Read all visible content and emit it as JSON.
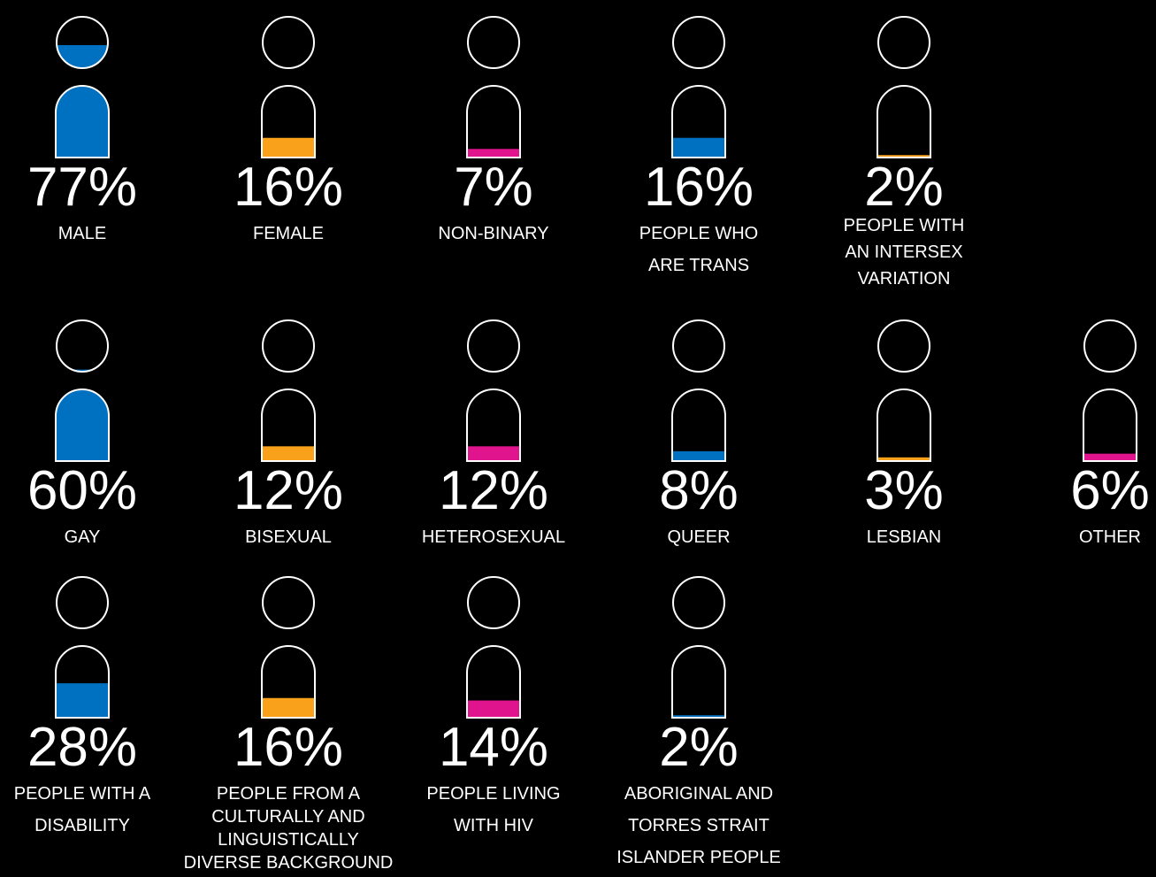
{
  "colors": {
    "background": "#000000",
    "blue": "#0070C0",
    "orange": "#F9A11B",
    "magenta": "#E0148C",
    "outline": "#FFFFFF",
    "text": "#FFFFFF"
  },
  "chart_data": {
    "type": "pictograph",
    "icon": "person-icon",
    "rows": [
      {
        "items": [
          {
            "value": 77,
            "display": "77%",
            "label_lines": [
              "MALE"
            ],
            "color": "#0070C0"
          },
          {
            "value": 16,
            "display": "16%",
            "label_lines": [
              "FEMALE"
            ],
            "color": "#F9A11B"
          },
          {
            "value": 7,
            "display": "7%",
            "label_lines": [
              "NON-BINARY"
            ],
            "color": "#E0148C"
          },
          {
            "value": 16,
            "display": "16%",
            "label_lines": [
              "PEOPLE WHO",
              "ARE TRANS"
            ],
            "color": "#0070C0"
          },
          {
            "value": 2,
            "display": "2%",
            "label_lines": [
              "PEOPLE WITH",
              "AN INTERSEX",
              "VARIATION"
            ],
            "color": "#F9A11B"
          }
        ]
      },
      {
        "items": [
          {
            "value": 60,
            "display": "60%",
            "label_lines": [
              "GAY"
            ],
            "color": "#0070C0"
          },
          {
            "value": 12,
            "display": "12%",
            "label_lines": [
              "BISEXUAL"
            ],
            "color": "#F9A11B"
          },
          {
            "value": 12,
            "display": "12%",
            "label_lines": [
              "HETEROSEXUAL"
            ],
            "color": "#E0148C"
          },
          {
            "value": 8,
            "display": "8%",
            "label_lines": [
              "QUEER"
            ],
            "color": "#0070C0"
          },
          {
            "value": 3,
            "display": "3%",
            "label_lines": [
              "LESBIAN"
            ],
            "color": "#F9A11B"
          },
          {
            "value": 6,
            "display": "6%",
            "label_lines": [
              "OTHER"
            ],
            "color": "#E0148C"
          }
        ]
      },
      {
        "items": [
          {
            "value": 28,
            "display": "28%",
            "label_lines": [
              "PEOPLE WITH A",
              "DISABILITY"
            ],
            "color": "#0070C0"
          },
          {
            "value": 16,
            "display": "16%",
            "label_lines": [
              "PEOPLE FROM A",
              "CULTURALLY AND",
              "LINGUISTICALLY",
              "DIVERSE BACKGROUND"
            ],
            "color": "#F9A11B"
          },
          {
            "value": 14,
            "display": "14%",
            "label_lines": [
              "PEOPLE LIVING",
              "WITH HIV"
            ],
            "color": "#E0148C"
          },
          {
            "value": 2,
            "display": "2%",
            "label_lines": [
              "ABORIGINAL AND",
              "TORRES STRAIT",
              "ISLANDER PEOPLE"
            ],
            "color": "#0070C0"
          }
        ]
      }
    ]
  }
}
